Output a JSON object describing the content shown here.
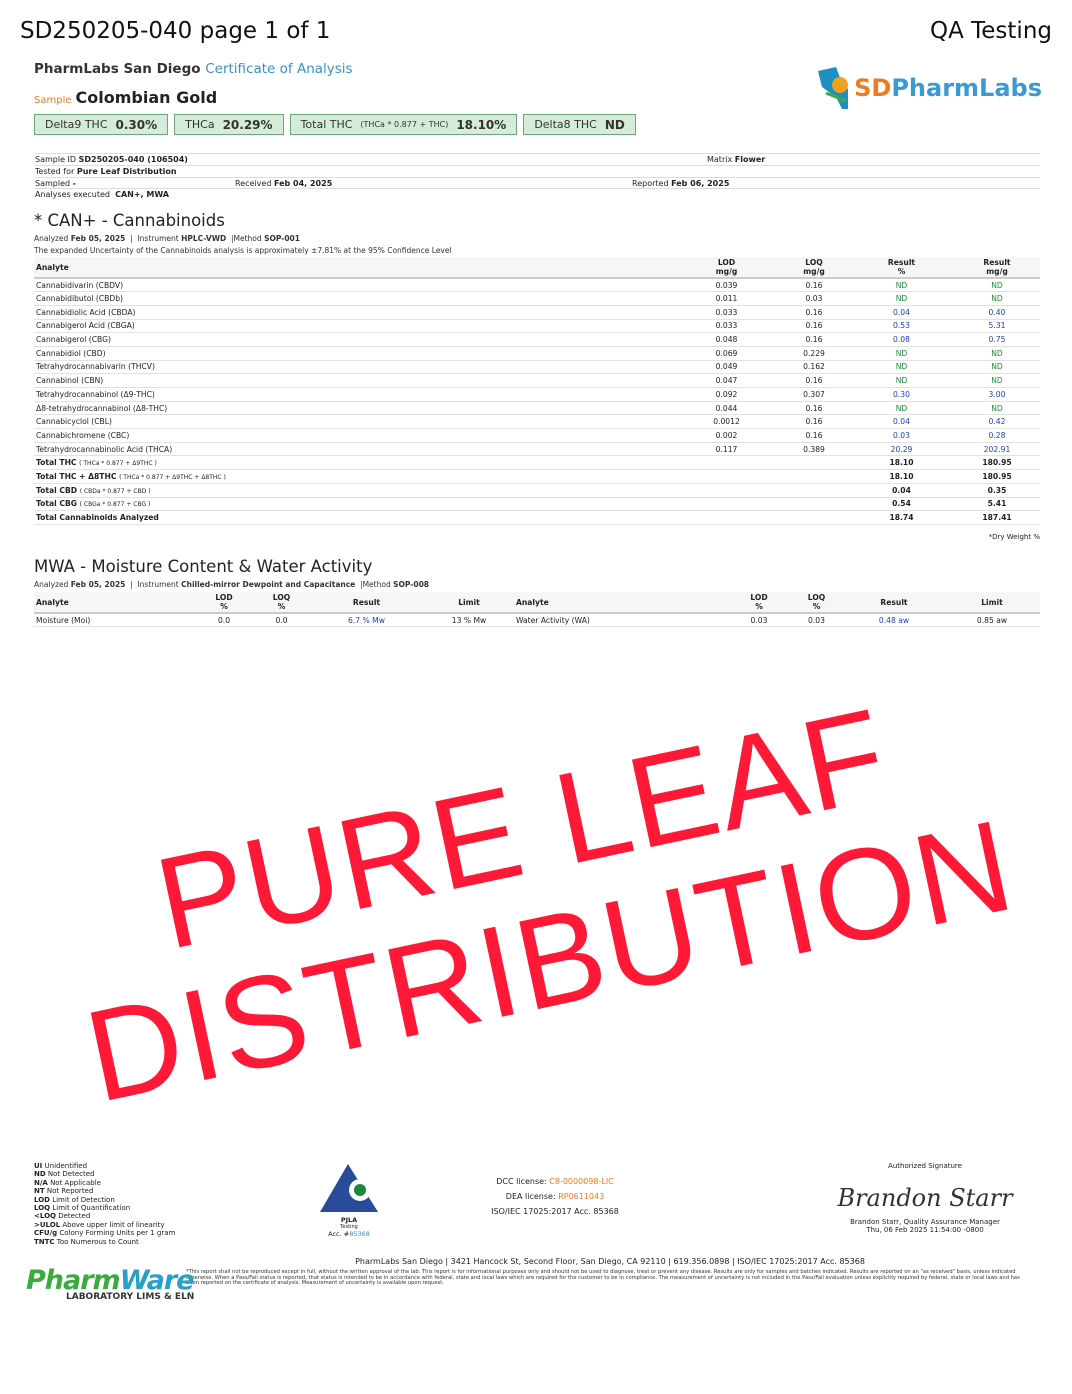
{
  "header": {
    "doc_title": "SD250205-040 page 1 of 1",
    "right_title": "QA Testing",
    "lab": "PharmLabs San Diego",
    "coa": "Certificate of Analysis",
    "sample_label": "Sample",
    "sample_name": "Colombian Gold",
    "logo_text_1": "SD",
    "logo_text_2": "PharmLabs"
  },
  "badges": [
    {
      "label": "Delta9 THC",
      "value": "0.30%"
    },
    {
      "label": "THCa",
      "value": "20.29%"
    },
    {
      "label": "Total THC",
      "formula": "(THCa * 0.877 + THC)",
      "value": "18.10%"
    },
    {
      "label": "Delta8 THC",
      "value": "ND"
    }
  ],
  "info": {
    "sample_id_label": "Sample ID",
    "sample_id": "SD250205-040 (106504)",
    "matrix_label": "Matrix",
    "matrix": "Flower",
    "tested_for_label": "Tested for",
    "tested_for": "Pure Leaf Distribution",
    "sampled_label": "Sampled",
    "sampled": "-",
    "received_label": "Received",
    "received": "Feb 04, 2025",
    "reported_label": "Reported",
    "reported": "Feb 06, 2025",
    "analyses_label": "Analyses executed",
    "analyses": "CAN+, MWA"
  },
  "can": {
    "title": "* CAN+ - Cannabinoids",
    "analyzed_label": "Analyzed",
    "analyzed": "Feb 05, 2025",
    "instrument_label": "Instrument",
    "instrument": "HPLC-VWD",
    "method_label": "Method",
    "method": "SOP-001",
    "uncertainty": "The expanded Uncertainty of the Cannabinoids analysis is approximately ±7.81% at the 95% Confidence Level",
    "headers": [
      "Analyte",
      "LOD mg/g",
      "LOQ mg/g",
      "Result %",
      "Result mg/g"
    ],
    "rows": [
      [
        "Cannabidivarin (CBDV)",
        "0.039",
        "0.16",
        "ND",
        "ND"
      ],
      [
        "Cannabidibutol (CBDb)",
        "0.011",
        "0.03",
        "ND",
        "ND"
      ],
      [
        "Cannabidiolic Acid (CBDA)",
        "0.033",
        "0.16",
        "0.04",
        "0.40"
      ],
      [
        "Cannabigerol Acid (CBGA)",
        "0.033",
        "0.16",
        "0.53",
        "5.31"
      ],
      [
        "Cannabigerol (CBG)",
        "0.048",
        "0.16",
        "0.08",
        "0.75"
      ],
      [
        "Cannabidiol (CBD)",
        "0.069",
        "0.229",
        "ND",
        "ND"
      ],
      [
        "Tetrahydrocannabivarin (THCV)",
        "0.049",
        "0.162",
        "ND",
        "ND"
      ],
      [
        "Cannabinol (CBN)",
        "0.047",
        "0.16",
        "ND",
        "ND"
      ],
      [
        "Tetrahydrocannabinol (Δ9-THC)",
        "0.092",
        "0.307",
        "0.30",
        "3.00"
      ],
      [
        "Δ8-tetrahydrocannabinol (Δ8-THC)",
        "0.044",
        "0.16",
        "ND",
        "ND"
      ],
      [
        "Cannabicyclol (CBL)",
        "0.0012",
        "0.16",
        "0.04",
        "0.42"
      ],
      [
        "Cannabichromene (CBC)",
        "0.002",
        "0.16",
        "0.03",
        "0.28"
      ],
      [
        "Tetrahydrocannabinolic Acid (THCA)",
        "0.117",
        "0.389",
        "20.29",
        "202.91"
      ]
    ],
    "totals": [
      [
        "Total THC",
        "( THCa * 0.877 + Δ9THC )",
        "18.10",
        "180.95"
      ],
      [
        "Total THC + Δ8THC",
        "( THCa * 0.877 + Δ9THC + Δ8THC )",
        "18.10",
        "180.95"
      ],
      [
        "Total CBD",
        "( CBDa * 0.877 + CBD )",
        "0.04",
        "0.35"
      ],
      [
        "Total CBG",
        "( CBGa * 0.877 + CBG )",
        "0.54",
        "5.41"
      ],
      [
        "Total Cannabinoids Analyzed",
        "",
        "18.74",
        "187.41"
      ]
    ],
    "footnote": "*Dry Weight %"
  },
  "mwa": {
    "title": "MWA - Moisture Content & Water Activity",
    "analyzed_label": "Analyzed",
    "analyzed": "Feb 05, 2025",
    "instrument_label": "Instrument",
    "instrument": "Chilled-mirror Dewpoint and Capacitance",
    "method_label": "Method",
    "method": "SOP-008",
    "headers": [
      "Analyte",
      "LOD %",
      "LOQ %",
      "Result",
      "Limit",
      "Analyte",
      "LOD %",
      "LOQ %",
      "Result",
      "Limit"
    ],
    "row": [
      "Moisture (Moi)",
      "0.0",
      "0.0",
      "6.7 % Mw",
      "13 % Mw",
      "Water Activity (WA)",
      "0.03",
      "0.03",
      "0.48 aw",
      "0.85 aw"
    ]
  },
  "legend": [
    [
      "UI",
      "Unidentified"
    ],
    [
      "ND",
      "Not Detected"
    ],
    [
      "N/A",
      "Not Applicable"
    ],
    [
      "NT",
      "Not Reported"
    ],
    [
      "LOD",
      "Limit of Detection"
    ],
    [
      "LOQ",
      "Limit of Quantification"
    ],
    [
      "<LOQ",
      "Detected"
    ],
    [
      ">ULOL",
      "Above upper limit of linearity"
    ],
    [
      "CFU/g",
      "Colony Forming Units per 1 gram"
    ],
    [
      "TNTC",
      "Too Numerous to Count"
    ]
  ],
  "pjla": {
    "name": "PJLA",
    "sub": "Testing",
    "acc_label": "Acc. #",
    "acc": "85368"
  },
  "licenses": {
    "dcc_label": "DCC license:",
    "dcc": "C8-0000098-LIC",
    "dea_label": "DEA license:",
    "dea": "RP0611043",
    "iso": "ISO/IEC 17025:2017 Acc. 85368"
  },
  "signature": {
    "label": "Authorized Signature",
    "sig": "Brandon Starr",
    "name": "Brandon Starr, Quality Assurance Manager",
    "date": "Thu, 06 Feb 2025 11:54:00 -0800"
  },
  "footer": {
    "address": "PharmLabs San Diego | 3421 Hancock St, Second Floor, San Diego, CA 92110 | 619.356.0898 | ISO/IEC 17025:2017 Acc. 85368",
    "disclaimer": "*This report shall not be reproduced except in full, without the written approval of the lab. This report is for informational purposes only and should not be used to diagnose, treat or prevent any disease. Results are only for samples and batches indicated. Results are reported on an \"as received\" basis, unless indicated otherwise. When a Pass/Fail status is reported, that status is intended to be in accordance with federal, state and local laws which are required for the customer to be in compliance. The measurement of uncertainty is not included in the Pass/Fail evaluation unless explicitly required by federal, state or local laws and has been reported on the certificate of analysis. Measurement of uncertainty is available upon request.",
    "pw_1": "Pharm",
    "pw_2": "Ware",
    "pw_sub": "LABORATORY LIMS & ELN"
  },
  "watermark": "PURE LEAF DISTRIBUTION",
  "colors": {
    "accent_blue": "#3a8fc8",
    "orange": "#f07a1e",
    "nd_green": "#1a8f3a",
    "result_blue": "#1f3fbf",
    "watermark_red": "#ff1937",
    "badge_bg": "#d4ecd9"
  }
}
